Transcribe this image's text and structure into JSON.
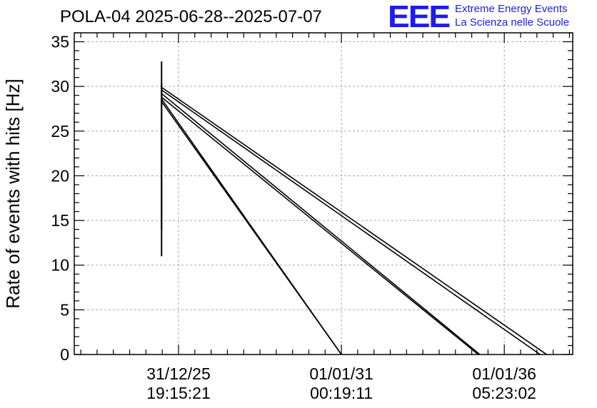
{
  "header": {
    "title": "POLA-04 2025-06-28--2025-07-07",
    "logo_text": "EEE",
    "logo_line1": "Extreme Energy Events",
    "logo_line2": "La Scienza nelle Scuole",
    "logo_color": "#1c1cf0"
  },
  "chart_data": {
    "type": "line",
    "title": "POLA-04 2025-06-28--2025-07-07",
    "xlabel": "",
    "ylabel": "Rate of events with hits [Hz]",
    "ylim": [
      0,
      36
    ],
    "yticks": [
      0,
      5,
      10,
      15,
      20,
      25,
      30,
      35
    ],
    "x_axis_note": "time axis; ticks at 31/12/25 19:15:21, 01/01/31 00:19:11, 01/01/36 05:23:02 (5-year spacing)",
    "xlim_years": [
      -3.2,
      12.1
    ],
    "xticks": [
      {
        "pos_years": 0,
        "line1": "31/12/25",
        "line2": "19:15:21"
      },
      {
        "pos_years": 5,
        "line1": "01/01/31",
        "line2": "00:19:11"
      },
      {
        "pos_years": 10,
        "line1": "01/01/36",
        "line2": "05:23:02"
      }
    ],
    "grid": true,
    "error_bar": {
      "x_years": -0.52,
      "y_low": 11,
      "y_high": 32.8
    },
    "error_bar_inner": {
      "x_years": -0.52,
      "y_low": 14,
      "y_high": 30.4
    },
    "series": [
      {
        "x": [
          -0.52,
          5.0
        ],
        "y": [
          28.3,
          0
        ]
      },
      {
        "x": [
          -0.52,
          5.0
        ],
        "y": [
          28.6,
          0
        ]
      },
      {
        "x": [
          -0.52,
          9.2
        ],
        "y": [
          28.8,
          0
        ]
      },
      {
        "x": [
          -0.52,
          9.25
        ],
        "y": [
          29.2,
          0
        ]
      },
      {
        "x": [
          -0.52,
          11.1
        ],
        "y": [
          29.6,
          0
        ]
      },
      {
        "x": [
          -0.52,
          11.3
        ],
        "y": [
          29.9,
          0
        ]
      }
    ]
  }
}
